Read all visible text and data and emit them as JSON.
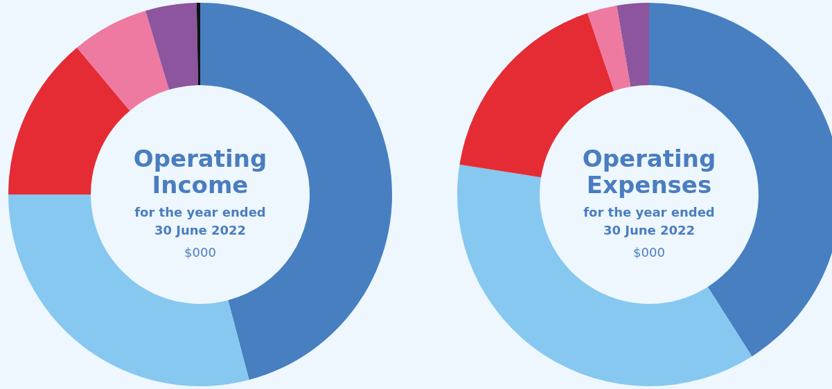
{
  "chart_data": [
    {
      "type": "donut",
      "title": "Operating Income",
      "subtitle": "for the year ended 30 June 2022",
      "annotations": [
        "$000"
      ],
      "categories": [
        null,
        null,
        null,
        null,
        null,
        null
      ],
      "values": [
        45.9,
        29.1,
        13.9,
        6.5,
        4.3,
        0.3
      ],
      "colors": [
        "#477fc1",
        "#86c8f0",
        "#e52c35",
        "#ef7aa1",
        "#8c559d",
        "#111111"
      ]
    },
    {
      "type": "donut",
      "title": "Operating Expenses",
      "subtitle": "for the year ended 30 June 2022",
      "annotations": [
        "$000"
      ],
      "categories": [
        null,
        null,
        null,
        null,
        null
      ],
      "values": [
        41.0,
        36.5,
        17.3,
        2.5,
        2.7
      ],
      "colors": [
        "#477fc1",
        "#86c8f0",
        "#e52c35",
        "#ef7aa1",
        "#8c559d"
      ]
    }
  ]
}
